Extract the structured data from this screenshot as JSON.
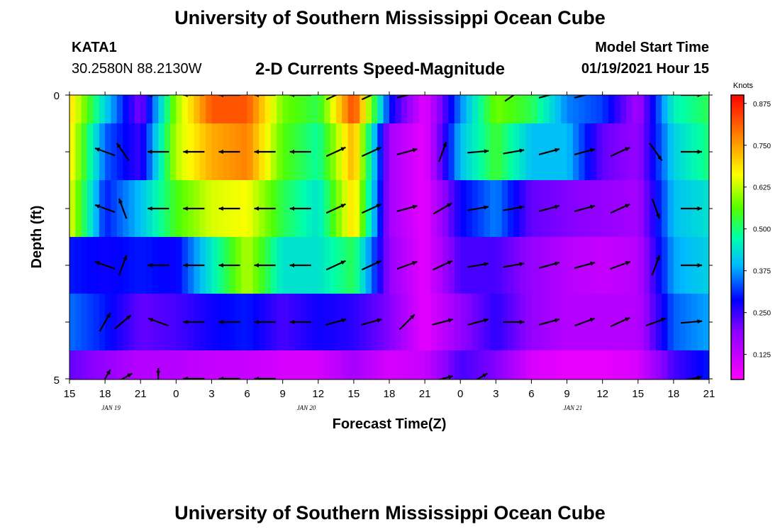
{
  "header": {
    "title": "University of Southern Mississippi Ocean Cube",
    "station_id": "KATA1",
    "station_coords": "30.2580N 88.2130W",
    "subtitle": "2-D Currents Speed-Magnitude",
    "model_start_label": "Model Start Time",
    "model_start_value": "01/19/2021 Hour 15"
  },
  "footer": {
    "title": "University of Southern Mississippi Ocean Cube"
  },
  "chart_data": {
    "type": "heatmap",
    "title": "2-D Currents Speed-Magnitude",
    "xlabel": "Forecast Time(Z)",
    "ylabel": "Depth (ft)",
    "x_hours": [
      0,
      3,
      6,
      9,
      12,
      15,
      18,
      21,
      24,
      27,
      30,
      33,
      36,
      39,
      42,
      45,
      48,
      51,
      54
    ],
    "x_tick_labels": [
      "15",
      "18",
      "21",
      "0",
      "3",
      "6",
      "9",
      "12",
      "15",
      "18",
      "21",
      "0",
      "3",
      "6",
      "9",
      "12",
      "15",
      "18",
      "21"
    ],
    "date_labels": [
      {
        "hour": 3.5,
        "text": "JAN 19"
      },
      {
        "hour": 20,
        "text": "JAN 20"
      },
      {
        "hour": 42.5,
        "text": "JAN 21"
      }
    ],
    "y_range": [
      0,
      5
    ],
    "y_tick_labels": [
      "0",
      "5"
    ],
    "depth_rows": 5,
    "colorbar": {
      "unit": "Knots",
      "min": 0.05,
      "max": 0.9,
      "ticks": [
        "0.875",
        "0.750",
        "0.625",
        "0.500",
        "0.375",
        "0.250",
        "0.125"
      ],
      "tick_values": [
        0.875,
        0.75,
        0.625,
        0.5,
        0.375,
        0.25,
        0.125
      ]
    },
    "speed_knots": [
      {
        "hour": 0,
        "values": [
          0.7,
          0.68,
          0.66,
          0.3,
          0.35,
          0.22
        ]
      },
      {
        "hour": 3,
        "values": [
          0.42,
          0.34,
          0.3,
          0.28,
          0.3,
          0.18
        ]
      },
      {
        "hour": 6,
        "values": [
          0.2,
          0.25,
          0.4,
          0.3,
          0.22,
          0.14
        ]
      },
      {
        "hour": 9,
        "values": [
          0.6,
          0.62,
          0.55,
          0.28,
          0.24,
          0.14
        ]
      },
      {
        "hour": 12,
        "values": [
          0.82,
          0.74,
          0.64,
          0.45,
          0.28,
          0.12
        ]
      },
      {
        "hour": 15,
        "values": [
          0.82,
          0.78,
          0.66,
          0.62,
          0.3,
          0.12
        ]
      },
      {
        "hour": 18,
        "values": [
          0.58,
          0.56,
          0.52,
          0.44,
          0.24,
          0.1
        ]
      },
      {
        "hour": 21,
        "values": [
          0.52,
          0.48,
          0.44,
          0.44,
          0.28,
          0.1
        ]
      },
      {
        "hour": 24,
        "values": [
          0.84,
          0.74,
          0.7,
          0.52,
          0.26,
          0.16
        ]
      },
      {
        "hour": 27,
        "values": [
          0.3,
          0.16,
          0.16,
          0.18,
          0.2,
          0.1
        ]
      },
      {
        "hour": 30,
        "values": [
          0.08,
          0.08,
          0.08,
          0.08,
          0.08,
          0.12
        ]
      },
      {
        "hour": 33,
        "values": [
          0.36,
          0.4,
          0.28,
          0.24,
          0.18,
          0.24
        ]
      },
      {
        "hour": 36,
        "values": [
          0.58,
          0.54,
          0.36,
          0.24,
          0.26,
          0.2
        ]
      },
      {
        "hour": 39,
        "values": [
          0.52,
          0.4,
          0.22,
          0.18,
          0.18,
          0.1
        ]
      },
      {
        "hour": 42,
        "values": [
          0.36,
          0.4,
          0.2,
          0.14,
          0.14,
          0.08
        ]
      },
      {
        "hour": 45,
        "values": [
          0.32,
          0.22,
          0.18,
          0.12,
          0.14,
          0.08
        ]
      },
      {
        "hour": 48,
        "values": [
          0.16,
          0.18,
          0.16,
          0.14,
          0.14,
          0.1
        ]
      },
      {
        "hour": 51,
        "values": [
          0.46,
          0.42,
          0.4,
          0.38,
          0.34,
          0.24
        ]
      },
      {
        "hour": 54,
        "values": [
          0.52,
          0.5,
          0.44,
          0.42,
          0.38,
          0.3
        ]
      }
    ],
    "direction_deg": [
      {
        "hour": 3,
        "values": [
          null,
          290,
          290,
          290,
          30,
          30
        ]
      },
      {
        "hour": 4.5,
        "values": [
          null,
          325,
          340,
          20,
          50,
          60
        ]
      },
      {
        "hour": 7.5,
        "values": [
          270,
          270,
          270,
          270,
          290,
          0
        ]
      },
      {
        "hour": 10.5,
        "values": [
          270,
          270,
          270,
          270,
          270,
          270
        ]
      },
      {
        "hour": 13.5,
        "values": [
          270,
          270,
          270,
          270,
          270,
          270
        ]
      },
      {
        "hour": 16.5,
        "values": [
          270,
          270,
          270,
          270,
          270,
          270
        ]
      },
      {
        "hour": 19.5,
        "values": [
          270,
          270,
          270,
          270,
          270,
          null
        ]
      },
      {
        "hour": 22.5,
        "values": [
          65,
          65,
          65,
          65,
          75,
          null
        ]
      },
      {
        "hour": 25.5,
        "values": [
          65,
          65,
          65,
          65,
          75,
          null
        ]
      },
      {
        "hour": 28.5,
        "values": [
          75,
          75,
          75,
          70,
          45,
          null
        ]
      },
      {
        "hour": 31.5,
        "values": [
          null,
          20,
          60,
          65,
          75,
          75
        ]
      },
      {
        "hour": 34.5,
        "values": [
          null,
          85,
          80,
          80,
          75,
          60
        ]
      },
      {
        "hour": 37.5,
        "values": [
          55,
          80,
          80,
          80,
          90,
          null
        ]
      },
      {
        "hour": 40.5,
        "values": [
          75,
          75,
          75,
          75,
          75,
          null
        ]
      },
      {
        "hour": 43.5,
        "values": [
          75,
          75,
          75,
          75,
          70,
          null
        ]
      },
      {
        "hour": 46.5,
        "values": [
          null,
          65,
          65,
          70,
          65,
          null
        ]
      },
      {
        "hour": 49.5,
        "values": [
          null,
          145,
          160,
          20,
          70,
          null
        ]
      },
      {
        "hour": 52.5,
        "values": [
          90,
          90,
          90,
          90,
          85,
          80
        ]
      }
    ]
  }
}
